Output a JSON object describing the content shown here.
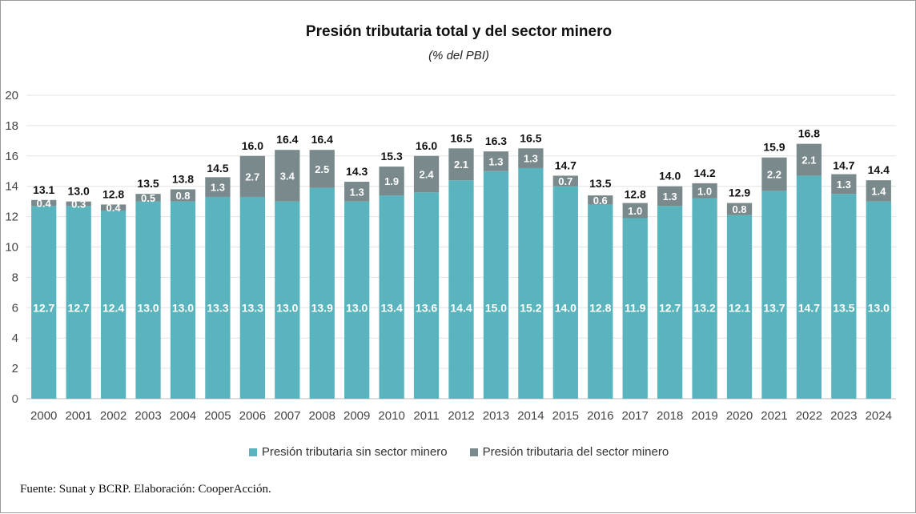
{
  "chart_data": {
    "type": "bar",
    "stacked": true,
    "title": "Presión tributaria total y del sector minero",
    "subtitle": "(% del PBI)",
    "categories": [
      "2000",
      "2001",
      "2002",
      "2003",
      "2004",
      "2005",
      "2006",
      "2007",
      "2008",
      "2009",
      "2010",
      "2011",
      "2012",
      "2013",
      "2014",
      "2015",
      "2016",
      "2017",
      "2018",
      "2019",
      "2020",
      "2021",
      "2022",
      "2023",
      "2024"
    ],
    "series": [
      {
        "name": "Presión tributaria sin sector minero",
        "color": "#5ab4be",
        "values": [
          12.7,
          12.7,
          12.4,
          13.0,
          13.0,
          13.3,
          13.3,
          13.0,
          13.9,
          13.0,
          13.4,
          13.6,
          14.4,
          15.0,
          15.2,
          14.0,
          12.8,
          11.9,
          12.7,
          13.2,
          12.1,
          13.7,
          14.7,
          13.5,
          13.0
        ]
      },
      {
        "name": "Presión tributaria del sector minero",
        "color": "#7a8a8c",
        "values": [
          0.4,
          0.3,
          0.4,
          0.5,
          0.8,
          1.3,
          2.7,
          3.4,
          2.5,
          1.3,
          1.9,
          2.4,
          2.1,
          1.3,
          1.3,
          0.7,
          0.6,
          1.0,
          1.3,
          1.0,
          0.8,
          2.2,
          2.1,
          1.3,
          1.4
        ]
      }
    ],
    "totals": [
      13.1,
      13.0,
      12.8,
      13.5,
      13.8,
      14.5,
      16.0,
      16.4,
      16.4,
      14.3,
      15.3,
      16.0,
      16.5,
      16.3,
      16.5,
      14.7,
      13.5,
      12.8,
      14.0,
      14.2,
      12.9,
      15.9,
      16.8,
      14.7,
      14.4
    ],
    "ylim": [
      0,
      20
    ],
    "yticks": [
      0,
      2,
      4,
      6,
      8,
      10,
      12,
      14,
      16,
      18,
      20
    ],
    "grid": true,
    "legend_position": "bottom"
  },
  "source_note": "Fuente: Sunat y BCRP. Elaboración: CooperAcción."
}
